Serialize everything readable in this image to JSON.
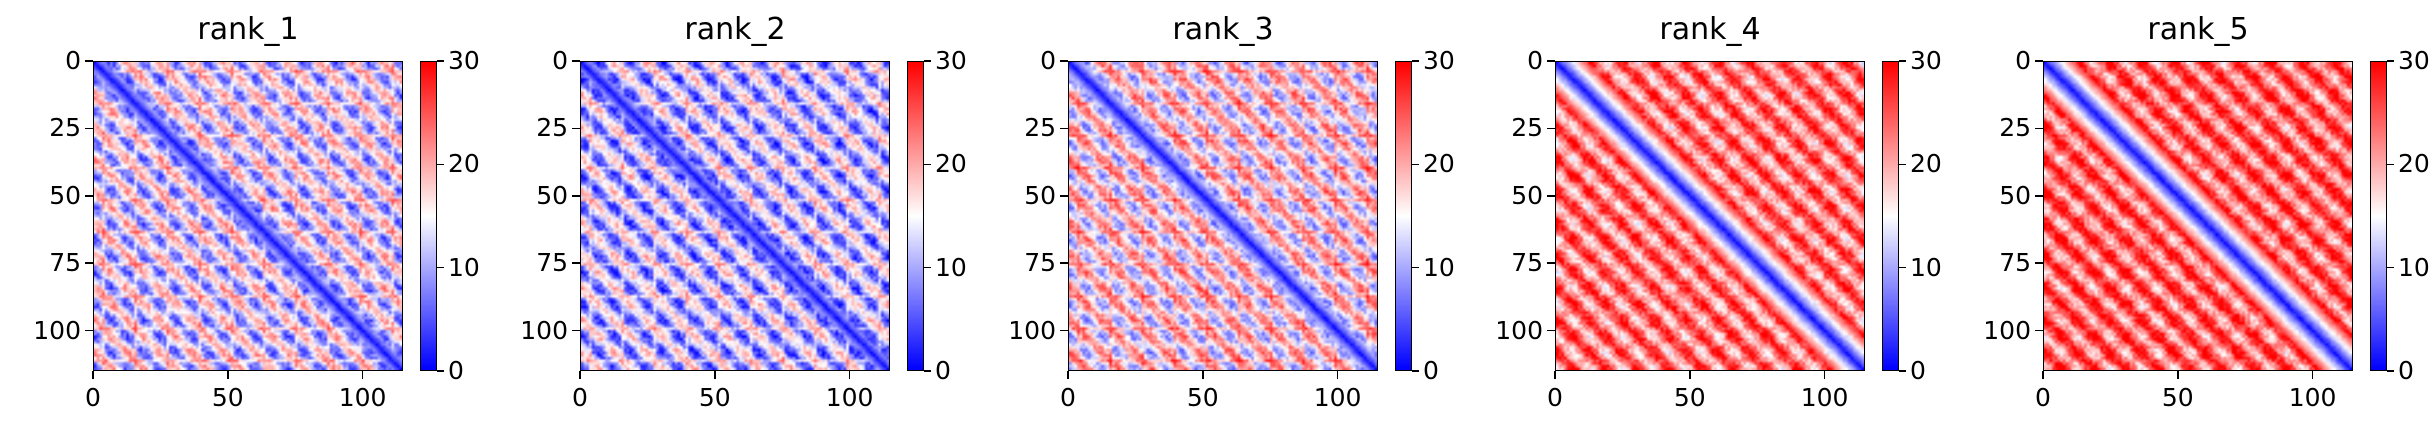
{
  "colors": {
    "low": "#0000ff",
    "mid": "#ffffff",
    "high": "#ff0000"
  },
  "chart_data": [
    {
      "type": "heatmap",
      "title": "rank_1",
      "size": 115,
      "colormap": "bwr",
      "clim": [
        0,
        30
      ],
      "xticks": [
        "0",
        "50",
        "100"
      ],
      "yticks": [
        "0",
        "25",
        "50",
        "75",
        "100"
      ],
      "cbar_ticks": [
        "0",
        "10",
        "20",
        "30"
      ],
      "period": 12,
      "baseline": 13,
      "band_width": 3
    },
    {
      "type": "heatmap",
      "title": "rank_2",
      "size": 115,
      "colormap": "bwr",
      "clim": [
        0,
        30
      ],
      "xticks": [
        "0",
        "50",
        "100"
      ],
      "yticks": [
        "0",
        "25",
        "50",
        "75",
        "100"
      ],
      "cbar_ticks": [
        "0",
        "10",
        "20",
        "30"
      ],
      "period": 12,
      "baseline": 11,
      "band_width": 3
    },
    {
      "type": "heatmap",
      "title": "rank_3",
      "size": 115,
      "colormap": "bwr",
      "clim": [
        0,
        30
      ],
      "xticks": [
        "0",
        "50",
        "100"
      ],
      "yticks": [
        "0",
        "25",
        "50",
        "75",
        "100"
      ],
      "cbar_ticks": [
        "0",
        "10",
        "20",
        "30"
      ],
      "period": 12,
      "baseline": 16,
      "band_width": 3
    },
    {
      "type": "heatmap",
      "title": "rank_4",
      "size": 115,
      "colormap": "bwr",
      "clim": [
        0,
        30
      ],
      "xticks": [
        "0",
        "50",
        "100"
      ],
      "yticks": [
        "0",
        "25",
        "50",
        "75",
        "100"
      ],
      "cbar_ticks": [
        "0",
        "10",
        "20",
        "30"
      ],
      "period": 12,
      "baseline": 23,
      "band_width": 4
    },
    {
      "type": "heatmap",
      "title": "rank_5",
      "size": 115,
      "colormap": "bwr",
      "clim": [
        0,
        30
      ],
      "xticks": [
        "0",
        "50",
        "100"
      ],
      "yticks": [
        "0",
        "25",
        "50",
        "75",
        "100"
      ],
      "cbar_ticks": [
        "0",
        "10",
        "20",
        "30"
      ],
      "period": 12,
      "baseline": 24,
      "band_width": 4
    }
  ]
}
